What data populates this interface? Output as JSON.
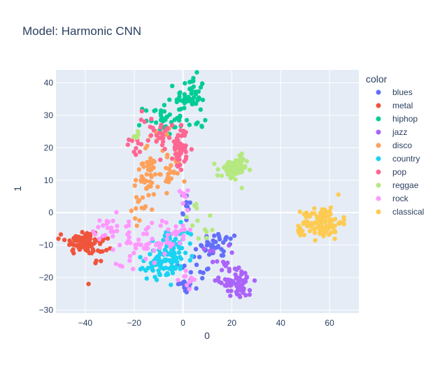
{
  "chart_data": {
    "type": "scatter",
    "title": "Model: Harmonic CNN",
    "xlabel": "0",
    "ylabel": "1",
    "xlim": [
      -52,
      72
    ],
    "ylim": [
      -31,
      44
    ],
    "x_ticks": [
      -40,
      -20,
      0,
      20,
      40,
      60
    ],
    "y_ticks": [
      -30,
      -20,
      -10,
      0,
      10,
      20,
      30,
      40
    ],
    "grid": true,
    "legend_title": "color",
    "legend_position": "right",
    "plot_background": "#e5ecf6",
    "series": [
      {
        "name": "blues",
        "color": "#636efa",
        "clusters": [
          {
            "cx": 1,
            "cy": -22.5,
            "sx": 1.6,
            "sy": 1.2,
            "n": 25
          },
          {
            "cx": 15,
            "cy": -10,
            "sx": 4,
            "sy": 2,
            "n": 35
          },
          {
            "cx": 1,
            "cy": 2,
            "sx": 1.5,
            "sy": 2.5,
            "n": 10
          },
          {
            "cx": 5,
            "cy": -15,
            "sx": 4,
            "sy": 3,
            "n": 15
          }
        ]
      },
      {
        "name": "metal",
        "color": "#ef553b",
        "clusters": [
          {
            "cx": -41,
            "cy": -9,
            "sx": 3.5,
            "sy": 2,
            "n": 75
          },
          {
            "cx": -34,
            "cy": -11.5,
            "sx": 3,
            "sy": 2.5,
            "n": 20
          }
        ]
      },
      {
        "name": "hiphop",
        "color": "#00cc96",
        "clusters": [
          {
            "cx": 3,
            "cy": 36,
            "sx": 3,
            "sy": 3,
            "n": 50
          },
          {
            "cx": -8,
            "cy": 29,
            "sx": 4,
            "sy": 2.5,
            "n": 40
          },
          {
            "cx": 6,
            "cy": 27,
            "sx": 2,
            "sy": 1.5,
            "n": 6
          }
        ]
      },
      {
        "name": "jazz",
        "color": "#ab63fa",
        "clusters": [
          {
            "cx": 22,
            "cy": -21,
            "sx": 3.5,
            "sy": 2,
            "n": 55
          },
          {
            "cx": 25,
            "cy": -24,
            "sx": 1.5,
            "sy": 1,
            "n": 15
          },
          {
            "cx": 13,
            "cy": -14,
            "sx": 3,
            "sy": 2,
            "n": 12
          }
        ]
      },
      {
        "name": "disco",
        "color": "#ffa15a",
        "clusters": [
          {
            "cx": -15,
            "cy": 11,
            "sx": 2.5,
            "sy": 3.5,
            "n": 45
          },
          {
            "cx": -5,
            "cy": 13,
            "sx": 2,
            "sy": 3,
            "n": 25
          },
          {
            "cx": -17,
            "cy": 1,
            "sx": 2,
            "sy": 2,
            "n": 12
          },
          {
            "cx": -10,
            "cy": 22,
            "sx": 2,
            "sy": 2,
            "n": 12
          }
        ]
      },
      {
        "name": "country",
        "color": "#19d3f3",
        "clusters": [
          {
            "cx": -5,
            "cy": -14,
            "sx": 4.5,
            "sy": 3,
            "n": 75
          },
          {
            "cx": -12,
            "cy": -17,
            "sx": 3,
            "sy": 2,
            "n": 25
          },
          {
            "cx": -3,
            "cy": -8,
            "sx": 3,
            "sy": 2.5,
            "n": 20
          }
        ]
      },
      {
        "name": "pop",
        "color": "#ff6692",
        "clusters": [
          {
            "cx": -1,
            "cy": 20,
            "sx": 1.5,
            "sy": 3.5,
            "n": 45
          },
          {
            "cx": -8,
            "cy": 24,
            "sx": 2.5,
            "sy": 2,
            "n": 25
          },
          {
            "cx": -19,
            "cy": 20,
            "sx": 1.5,
            "sy": 1.5,
            "n": 10
          },
          {
            "cx": -14,
            "cy": 29,
            "sx": 1.5,
            "sy": 1.5,
            "n": 6
          }
        ]
      },
      {
        "name": "reggae",
        "color": "#b6e880",
        "clusters": [
          {
            "cx": 20,
            "cy": 13,
            "sx": 3,
            "sy": 1.8,
            "n": 55
          },
          {
            "cx": 23,
            "cy": 16,
            "sx": 1.5,
            "sy": 1,
            "n": 12
          },
          {
            "cx": 8,
            "cy": -3,
            "sx": 5,
            "sy": 3,
            "n": 12
          },
          {
            "cx": -19,
            "cy": 24,
            "sx": 1.5,
            "sy": 1.5,
            "n": 6
          }
        ]
      },
      {
        "name": "rock",
        "color": "#ff97ff",
        "clusters": [
          {
            "cx": -17,
            "cy": -10,
            "sx": 5,
            "sy": 3,
            "n": 40
          },
          {
            "cx": -31,
            "cy": -6,
            "sx": 4,
            "sy": 2.5,
            "n": 25
          },
          {
            "cx": -4,
            "cy": -7,
            "sx": 4,
            "sy": 2.5,
            "n": 25
          },
          {
            "cx": 1,
            "cy": -20,
            "sx": 3,
            "sy": 2,
            "n": 10
          },
          {
            "cx": 0,
            "cy": 6,
            "sx": 2,
            "sy": 2,
            "n": 8
          }
        ]
      },
      {
        "name": "classical",
        "color": "#fecb52",
        "clusters": [
          {
            "cx": 57,
            "cy": -3,
            "sx": 4,
            "sy": 2.5,
            "n": 110
          },
          {
            "cx": 47.5,
            "cy": -5.5,
            "sx": 0.6,
            "sy": 0.8,
            "n": 8
          }
        ]
      }
    ]
  }
}
